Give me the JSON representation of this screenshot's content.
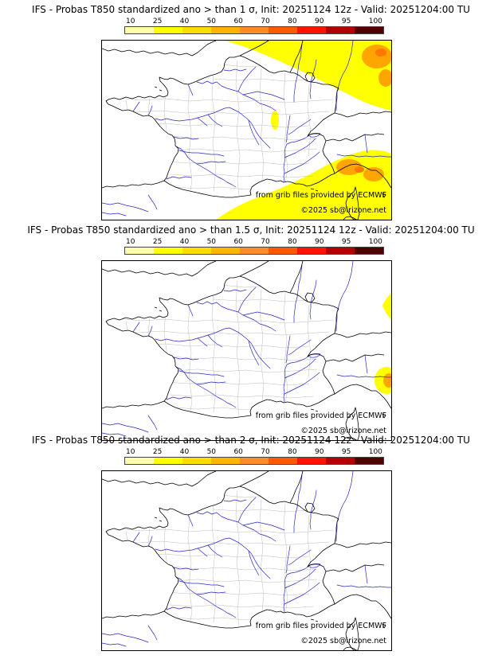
{
  "panels": [
    {
      "title": "IFS - Probas T850  standardized ano > than 1 σ, Init: 20251124 12z - Valid: 20251204:00 TU",
      "credit": "from grib files provided by ECMWF",
      "copyright": "©2025 sb@irizone.net"
    },
    {
      "title": "IFS - Probas T850  standardized ano > than 1.5 σ, Init: 20251124 12z - Valid: 20251204:00 TU",
      "credit": "from grib files provided by ECMWF",
      "copyright": "©2025 sb@irizone.net"
    },
    {
      "title": "IFS - Probas T850  standardized ano > than 2 σ, Init: 20251124 12z - Valid: 20251204:00 TU",
      "credit": "from grib files provided by ECMWF",
      "copyright": "©2025 sb@irizone.net"
    }
  ],
  "colorbar": {
    "ticks": [
      "10",
      "25",
      "40",
      "50",
      "60",
      "70",
      "80",
      "90",
      "95",
      "100"
    ],
    "segment_colors": [
      "#ffffaa",
      "#ffff00",
      "#ffdc00",
      "#ffb400",
      "#ff8c28",
      "#ff5a00",
      "#ff1400",
      "#b40000",
      "#500000"
    ]
  },
  "map_colors": {
    "coastlines": "#000000",
    "rivers": "#2828c8",
    "departments": "#b4b4b4",
    "prob_low": "#ffff00",
    "prob_mid": "#ffa500",
    "prob_high": "#ff7800",
    "background": "#ffffff"
  },
  "chart_data": [
    {
      "type": "heatmap",
      "title": "IFS - Probas T850 standardized ano > than 1 σ",
      "init": "20251124 12z",
      "valid": "20251204:00 TU",
      "variable": "Probability that T850 standardized anomaly exceeds 1 sigma",
      "units": "%",
      "scale_ticks": [
        10,
        25,
        40,
        50,
        60,
        70,
        80,
        90,
        95,
        100
      ],
      "legend_position": "top",
      "regions": [
        {
          "area": "NE of a Picardie-Alps line: Benelux, Germany, far NE France",
          "value_pct": "10-25"
        },
        {
          "area": "far NE corner of domain (central Germany)",
          "value_pct": "25-50"
        },
        {
          "area": "Gulf of Genoa / NW Italy coastal patches",
          "value_pct": "25-50"
        },
        {
          "area": "western Mediterranean, SE corner incl. Corsica",
          "value_pct": "10-25"
        },
        {
          "area": "small isolated spot near northern Alps / Rhone valley",
          "value_pct": "10-25"
        },
        {
          "area": "rest of France and Atlantic (white)",
          "value_pct": "<10"
        }
      ]
    },
    {
      "type": "heatmap",
      "title": "IFS - Probas T850 standardized ano > than 1.5 σ",
      "init": "20251124 12z",
      "valid": "20251204:00 TU",
      "variable": "Probability that T850 standardized anomaly exceeds 1.5 sigma",
      "units": "%",
      "scale_ticks": [
        10,
        25,
        40,
        50,
        60,
        70,
        80,
        90,
        95,
        100
      ],
      "legend_position": "top",
      "regions": [
        {
          "area": "right edge sliver (SW Germany)",
          "value_pct": "10-25"
        },
        {
          "area": "right edge patch, Gulf of Genoa",
          "value_pct": "10-40"
        },
        {
          "area": "everywhere else (white)",
          "value_pct": "<10"
        }
      ]
    },
    {
      "type": "heatmap",
      "title": "IFS - Probas T850 standardized ano > than 2 σ",
      "init": "20251124 12z",
      "valid": "20251204:00 TU",
      "variable": "Probability that T850 standardized anomaly exceeds 2 sigma",
      "units": "%",
      "scale_ticks": [
        10,
        25,
        40,
        50,
        60,
        70,
        80,
        90,
        95,
        100
      ],
      "legend_position": "top",
      "regions": [
        {
          "area": "entire domain (white)",
          "value_pct": "<10"
        }
      ]
    }
  ]
}
